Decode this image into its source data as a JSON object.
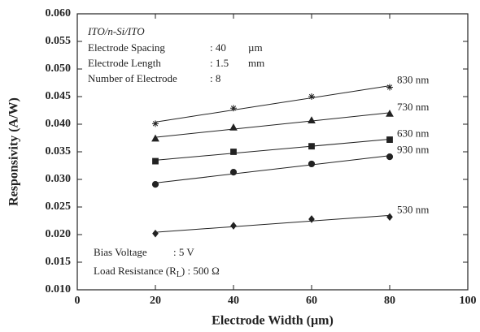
{
  "chart_data": {
    "type": "scatter",
    "x_label": "Electrode Width (µm)",
    "y_label": "Responsivity (A/W)",
    "xlim": [
      0,
      100
    ],
    "xticks": [
      0,
      20,
      40,
      60,
      80,
      100
    ],
    "ylim": [
      0.01,
      0.06
    ],
    "yticks": [
      {
        "value": 0.01,
        "label": "0.010"
      },
      {
        "value": 0.015,
        "label": "0.015"
      },
      {
        "value": 0.02,
        "label": "0.020"
      },
      {
        "value": 0.025,
        "label": "0.025"
      },
      {
        "value": 0.03,
        "label": "0.030"
      },
      {
        "value": 0.035,
        "label": "0.035"
      },
      {
        "value": 0.04,
        "label": "0.040"
      },
      {
        "value": 0.045,
        "label": "0.045"
      },
      {
        "value": 0.05,
        "label": "0.050"
      },
      {
        "value": 0.055,
        "label": "0.055"
      },
      {
        "value": 0.06,
        "label": "0.060"
      }
    ],
    "fit": "linear",
    "x": [
      20,
      40,
      60,
      80
    ],
    "series": [
      {
        "name": "830 nm",
        "marker": "asterisk",
        "color": "#222222",
        "values": [
          0.0401,
          0.0429,
          0.045,
          0.0467
        ]
      },
      {
        "name": "730 nm",
        "marker": "triangle",
        "color": "#222222",
        "values": [
          0.0374,
          0.0394,
          0.0407,
          0.0419
        ]
      },
      {
        "name": "630 nm",
        "marker": "square",
        "color": "#222222",
        "values": [
          0.0333,
          0.035,
          0.036,
          0.0372
        ]
      },
      {
        "name": "930 nm",
        "marker": "circle",
        "color": "#222222",
        "values": [
          0.0291,
          0.0313,
          0.0328,
          0.0341
        ]
      },
      {
        "name": "530 nm",
        "marker": "diamond",
        "color": "#222222",
        "values": [
          0.0202,
          0.0216,
          0.0228,
          0.0232
        ]
      }
    ],
    "annotations": {
      "structure": "ITO/n-Si/ITO",
      "parameters": [
        [
          "Electrode Spacing",
          ": 40",
          "µm"
        ],
        [
          "Electrode Length",
          ": 1.5",
          "mm"
        ],
        [
          "Number of Electrode",
          ": 8"
        ]
      ],
      "bias": [
        "Bias Voltage",
        ": 5 V"
      ],
      "load": [
        "Load Resistance (R",
        "L",
        ") : 500 Ω"
      ]
    }
  }
}
